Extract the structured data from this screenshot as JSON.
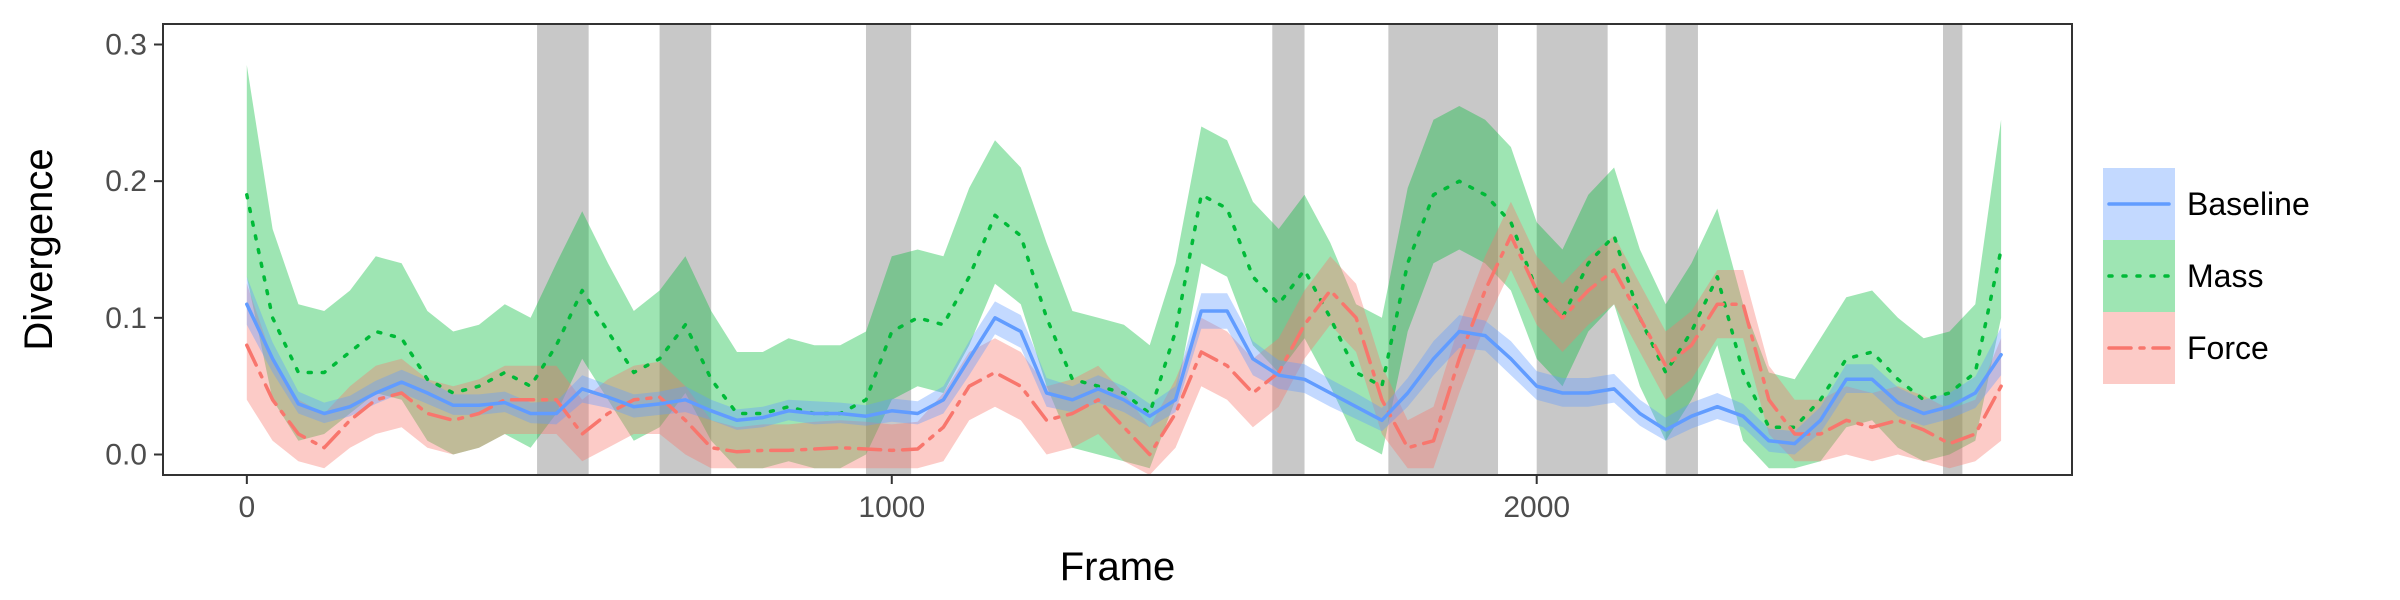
{
  "chart_data": {
    "type": "line",
    "title": "",
    "xlabel": "Frame",
    "ylabel": "Divergence",
    "xlim": [
      -130,
      2830
    ],
    "ylim": [
      -0.015,
      0.315
    ],
    "xticks": [
      0,
      1000,
      2000
    ],
    "yticks": [
      0.0,
      0.1,
      0.2,
      0.3
    ],
    "xtick_labels": [
      "0",
      "1000",
      "2000"
    ],
    "ytick_labels": [
      "0.0",
      "0.1",
      "0.2",
      "0.3"
    ],
    "grid": false,
    "legend_position": "right",
    "shaded_intervals": [
      [
        450,
        530
      ],
      [
        640,
        720
      ],
      [
        960,
        1030
      ],
      [
        1590,
        1640
      ],
      [
        1770,
        1940
      ],
      [
        2000,
        2110
      ],
      [
        2200,
        2250
      ],
      [
        2630,
        2660
      ]
    ],
    "series": [
      {
        "name": "Baseline",
        "color": "#619CFF",
        "dash": "solid",
        "x": [
          0,
          40,
          80,
          120,
          160,
          200,
          240,
          280,
          320,
          360,
          400,
          440,
          480,
          520,
          560,
          600,
          640,
          680,
          720,
          760,
          800,
          840,
          880,
          920,
          960,
          1000,
          1040,
          1080,
          1120,
          1160,
          1200,
          1240,
          1280,
          1320,
          1360,
          1400,
          1440,
          1480,
          1520,
          1560,
          1600,
          1640,
          1680,
          1720,
          1760,
          1800,
          1840,
          1880,
          1920,
          1960,
          2000,
          2040,
          2080,
          2120,
          2160,
          2200,
          2240,
          2280,
          2320,
          2360,
          2400,
          2440,
          2480,
          2520,
          2560,
          2600,
          2640,
          2680,
          2720
        ],
        "y": [
          0.11,
          0.07,
          0.037,
          0.03,
          0.035,
          0.045,
          0.053,
          0.045,
          0.036,
          0.036,
          0.038,
          0.03,
          0.03,
          0.048,
          0.042,
          0.035,
          0.037,
          0.04,
          0.032,
          0.025,
          0.027,
          0.032,
          0.03,
          0.03,
          0.028,
          0.032,
          0.03,
          0.04,
          0.07,
          0.1,
          0.09,
          0.045,
          0.04,
          0.048,
          0.04,
          0.028,
          0.04,
          0.105,
          0.105,
          0.07,
          0.058,
          0.055,
          0.045,
          0.035,
          0.025,
          0.045,
          0.07,
          0.09,
          0.087,
          0.07,
          0.05,
          0.045,
          0.045,
          0.048,
          0.03,
          0.018,
          0.028,
          0.035,
          0.028,
          0.01,
          0.008,
          0.025,
          0.055,
          0.055,
          0.038,
          0.03,
          0.035,
          0.045,
          0.073
        ],
        "lower": [
          0.095,
          0.06,
          0.03,
          0.023,
          0.028,
          0.037,
          0.045,
          0.037,
          0.029,
          0.029,
          0.031,
          0.023,
          0.022,
          0.038,
          0.034,
          0.027,
          0.029,
          0.031,
          0.025,
          0.018,
          0.02,
          0.025,
          0.022,
          0.023,
          0.021,
          0.024,
          0.022,
          0.03,
          0.058,
          0.088,
          0.078,
          0.035,
          0.031,
          0.038,
          0.031,
          0.02,
          0.031,
          0.092,
          0.092,
          0.058,
          0.048,
          0.045,
          0.035,
          0.026,
          0.017,
          0.035,
          0.058,
          0.078,
          0.076,
          0.058,
          0.04,
          0.035,
          0.035,
          0.038,
          0.021,
          0.01,
          0.019,
          0.026,
          0.02,
          0.002,
          0.0,
          0.016,
          0.045,
          0.045,
          0.028,
          0.021,
          0.026,
          0.034,
          0.058
        ],
        "upper": [
          0.13,
          0.082,
          0.046,
          0.038,
          0.043,
          0.054,
          0.062,
          0.054,
          0.044,
          0.044,
          0.046,
          0.038,
          0.039,
          0.058,
          0.051,
          0.044,
          0.046,
          0.05,
          0.04,
          0.033,
          0.035,
          0.04,
          0.039,
          0.038,
          0.036,
          0.041,
          0.039,
          0.05,
          0.083,
          0.112,
          0.102,
          0.056,
          0.05,
          0.058,
          0.05,
          0.037,
          0.05,
          0.118,
          0.118,
          0.083,
          0.069,
          0.066,
          0.055,
          0.045,
          0.034,
          0.056,
          0.083,
          0.102,
          0.098,
          0.083,
          0.061,
          0.056,
          0.056,
          0.059,
          0.04,
          0.027,
          0.038,
          0.045,
          0.037,
          0.019,
          0.017,
          0.035,
          0.066,
          0.066,
          0.049,
          0.04,
          0.045,
          0.057,
          0.093
        ]
      },
      {
        "name": "Mass",
        "color": "#00BA38",
        "dash": "dotted",
        "x": [
          0,
          40,
          80,
          120,
          160,
          200,
          240,
          280,
          320,
          360,
          400,
          440,
          480,
          520,
          560,
          600,
          640,
          680,
          720,
          760,
          800,
          840,
          880,
          920,
          960,
          1000,
          1040,
          1080,
          1120,
          1160,
          1200,
          1240,
          1280,
          1320,
          1360,
          1400,
          1440,
          1480,
          1520,
          1560,
          1600,
          1640,
          1680,
          1720,
          1760,
          1800,
          1840,
          1880,
          1920,
          1960,
          2000,
          2040,
          2080,
          2120,
          2160,
          2200,
          2240,
          2280,
          2320,
          2360,
          2400,
          2440,
          2480,
          2520,
          2560,
          2600,
          2640,
          2680,
          2720
        ],
        "y": [
          0.19,
          0.1,
          0.06,
          0.06,
          0.075,
          0.09,
          0.085,
          0.055,
          0.045,
          0.05,
          0.06,
          0.05,
          0.08,
          0.12,
          0.09,
          0.06,
          0.07,
          0.095,
          0.055,
          0.03,
          0.03,
          0.035,
          0.03,
          0.03,
          0.04,
          0.09,
          0.1,
          0.095,
          0.13,
          0.175,
          0.16,
          0.1,
          0.055,
          0.05,
          0.045,
          0.03,
          0.09,
          0.19,
          0.18,
          0.13,
          0.11,
          0.135,
          0.1,
          0.06,
          0.05,
          0.14,
          0.19,
          0.2,
          0.19,
          0.17,
          0.12,
          0.1,
          0.14,
          0.16,
          0.1,
          0.06,
          0.09,
          0.13,
          0.06,
          0.02,
          0.02,
          0.04,
          0.07,
          0.075,
          0.055,
          0.04,
          0.045,
          0.06,
          0.15
        ],
        "lower": [
          0.13,
          0.04,
          0.01,
          0.015,
          0.03,
          0.045,
          0.04,
          0.01,
          0.0,
          0.005,
          0.015,
          0.005,
          0.03,
          0.07,
          0.04,
          0.01,
          0.02,
          0.045,
          0.01,
          -0.01,
          -0.01,
          -0.005,
          -0.01,
          -0.01,
          0.0,
          0.04,
          0.05,
          0.045,
          0.08,
          0.125,
          0.11,
          0.05,
          0.005,
          0.0,
          -0.005,
          -0.01,
          0.04,
          0.14,
          0.13,
          0.08,
          0.06,
          0.085,
          0.05,
          0.01,
          0.0,
          0.09,
          0.14,
          0.15,
          0.14,
          0.12,
          0.07,
          0.05,
          0.09,
          0.11,
          0.05,
          0.01,
          0.04,
          0.08,
          0.01,
          -0.01,
          -0.01,
          -0.005,
          0.02,
          0.025,
          0.005,
          -0.005,
          0.0,
          0.01,
          0.1
        ],
        "upper": [
          0.285,
          0.165,
          0.11,
          0.105,
          0.12,
          0.145,
          0.14,
          0.105,
          0.09,
          0.095,
          0.11,
          0.1,
          0.14,
          0.178,
          0.14,
          0.105,
          0.12,
          0.145,
          0.105,
          0.075,
          0.075,
          0.085,
          0.08,
          0.08,
          0.09,
          0.145,
          0.15,
          0.145,
          0.195,
          0.23,
          0.21,
          0.155,
          0.105,
          0.1,
          0.095,
          0.08,
          0.14,
          0.24,
          0.23,
          0.185,
          0.165,
          0.19,
          0.155,
          0.11,
          0.1,
          0.195,
          0.245,
          0.255,
          0.245,
          0.225,
          0.17,
          0.15,
          0.19,
          0.21,
          0.15,
          0.11,
          0.14,
          0.18,
          0.11,
          0.06,
          0.055,
          0.085,
          0.115,
          0.12,
          0.1,
          0.085,
          0.09,
          0.11,
          0.245
        ]
      },
      {
        "name": "Force",
        "color": "#F8766D",
        "dash": "dashdot",
        "x": [
          0,
          40,
          80,
          120,
          160,
          200,
          240,
          280,
          320,
          360,
          400,
          440,
          480,
          520,
          560,
          600,
          640,
          680,
          720,
          760,
          800,
          840,
          880,
          920,
          960,
          1000,
          1040,
          1080,
          1120,
          1160,
          1200,
          1240,
          1280,
          1320,
          1360,
          1400,
          1440,
          1480,
          1520,
          1560,
          1600,
          1640,
          1680,
          1720,
          1760,
          1800,
          1840,
          1880,
          1920,
          1960,
          2000,
          2040,
          2080,
          2120,
          2160,
          2200,
          2240,
          2280,
          2320,
          2360,
          2400,
          2440,
          2480,
          2520,
          2560,
          2600,
          2640,
          2680,
          2720
        ],
        "y": [
          0.08,
          0.04,
          0.015,
          0.005,
          0.025,
          0.04,
          0.045,
          0.03,
          0.025,
          0.03,
          0.04,
          0.04,
          0.04,
          0.015,
          0.03,
          0.04,
          0.042,
          0.025,
          0.005,
          0.002,
          0.003,
          0.003,
          0.004,
          0.005,
          0.004,
          0.003,
          0.004,
          0.02,
          0.05,
          0.06,
          0.05,
          0.025,
          0.03,
          0.04,
          0.02,
          0.0,
          0.03,
          0.075,
          0.065,
          0.045,
          0.06,
          0.095,
          0.12,
          0.1,
          0.04,
          0.005,
          0.01,
          0.07,
          0.12,
          0.16,
          0.12,
          0.1,
          0.12,
          0.135,
          0.1,
          0.065,
          0.08,
          0.11,
          0.11,
          0.04,
          0.015,
          0.015,
          0.025,
          0.02,
          0.025,
          0.018,
          0.008,
          0.015,
          0.05
        ],
        "lower": [
          0.04,
          0.01,
          -0.005,
          -0.01,
          0.005,
          0.015,
          0.02,
          0.005,
          0.0,
          0.005,
          0.015,
          0.015,
          0.015,
          -0.005,
          0.005,
          0.015,
          0.015,
          0.0,
          -0.01,
          -0.01,
          -0.01,
          -0.01,
          -0.01,
          -0.01,
          -0.01,
          -0.01,
          -0.01,
          -0.005,
          0.025,
          0.035,
          0.025,
          0.0,
          0.005,
          0.015,
          -0.005,
          -0.015,
          0.005,
          0.05,
          0.04,
          0.02,
          0.035,
          0.07,
          0.095,
          0.075,
          0.015,
          -0.01,
          -0.01,
          0.045,
          0.095,
          0.135,
          0.095,
          0.075,
          0.095,
          0.11,
          0.075,
          0.04,
          0.055,
          0.085,
          0.085,
          0.015,
          -0.005,
          -0.005,
          0.0,
          -0.005,
          0.0,
          -0.005,
          -0.01,
          -0.005,
          0.01
        ],
        "upper": [
          0.125,
          0.07,
          0.04,
          0.03,
          0.05,
          0.065,
          0.07,
          0.055,
          0.05,
          0.055,
          0.065,
          0.065,
          0.065,
          0.04,
          0.055,
          0.065,
          0.068,
          0.05,
          0.025,
          0.02,
          0.022,
          0.022,
          0.024,
          0.025,
          0.024,
          0.022,
          0.024,
          0.045,
          0.075,
          0.085,
          0.075,
          0.05,
          0.055,
          0.065,
          0.045,
          0.02,
          0.055,
          0.1,
          0.09,
          0.07,
          0.085,
          0.12,
          0.145,
          0.125,
          0.065,
          0.025,
          0.035,
          0.095,
          0.145,
          0.185,
          0.145,
          0.125,
          0.145,
          0.16,
          0.125,
          0.09,
          0.105,
          0.135,
          0.135,
          0.065,
          0.04,
          0.04,
          0.05,
          0.045,
          0.05,
          0.043,
          0.033,
          0.04,
          0.085
        ]
      }
    ]
  }
}
